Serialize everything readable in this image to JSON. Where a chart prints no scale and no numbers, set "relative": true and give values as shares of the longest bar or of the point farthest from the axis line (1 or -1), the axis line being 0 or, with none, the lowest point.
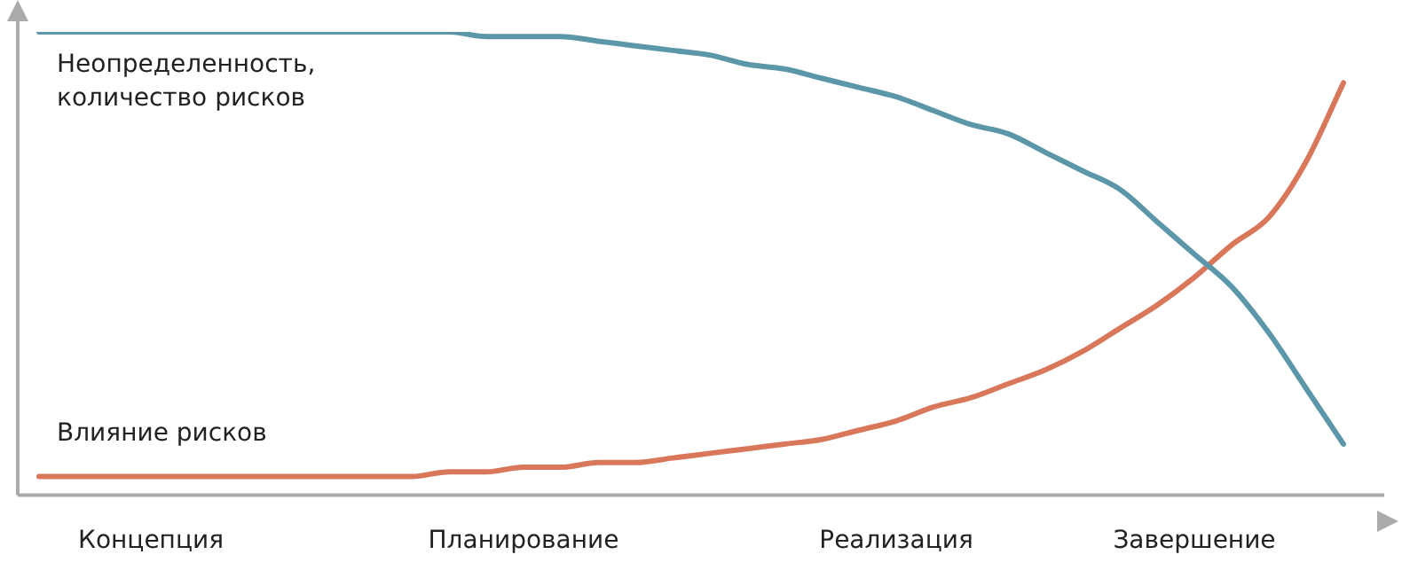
{
  "chart_data": {
    "type": "line",
    "relative": true,
    "categories": [
      null,
      null,
      null,
      "Концепция",
      null,
      null,
      null,
      null,
      null,
      null,
      null,
      null,
      null,
      "Планирование",
      null,
      null,
      null,
      null,
      null,
      null,
      null,
      null,
      null,
      "Реализация",
      null,
      null,
      null,
      null,
      null,
      null,
      null,
      "Завершение",
      null,
      null,
      null,
      null
    ],
    "series": [
      {
        "name": "Неопределенность, количество рисков",
        "color": "#5b97a8",
        "values": [
          1,
          1,
          1,
          1,
          1,
          1,
          1,
          1,
          1,
          1,
          1,
          1,
          0.99,
          0.99,
          0.99,
          0.98,
          0.97,
          0.96,
          0.95,
          0.93,
          0.92,
          0.9,
          0.88,
          0.86,
          0.83,
          0.8,
          0.78,
          0.74,
          0.7,
          0.66,
          0.59,
          0.52,
          0.45,
          0.35,
          0.23,
          0.11
        ]
      },
      {
        "name": "Влияние рисков",
        "color": "#d9775a",
        "values": [
          0.04,
          0.04,
          0.04,
          0.04,
          0.04,
          0.04,
          0.04,
          0.04,
          0.04,
          0.04,
          0.04,
          0.05,
          0.05,
          0.06,
          0.06,
          0.07,
          0.07,
          0.08,
          0.09,
          0.1,
          0.11,
          0.12,
          0.14,
          0.16,
          0.19,
          0.21,
          0.24,
          0.27,
          0.31,
          0.36,
          0.41,
          0.47,
          0.54,
          0.6,
          0.72,
          0.89
        ]
      }
    ]
  }
}
